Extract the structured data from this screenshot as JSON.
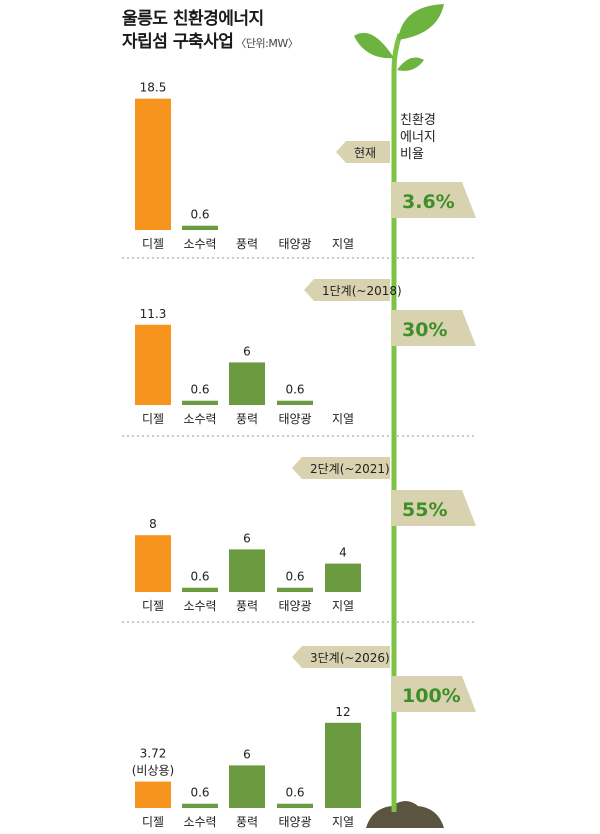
{
  "title_line1": "울릉도 친환경에너지",
  "title_line2": "자립섬 구축사업",
  "unit": "〈단위:MW〉",
  "ratio_label": "친환경\n에너지\n비율",
  "categories": [
    "디젤",
    "소수력",
    "풍력",
    "태양광",
    "지열"
  ],
  "colors": {
    "diesel": "#f7941d",
    "renewable": "#6b9a40",
    "banner": "#d9d2b0",
    "stem": "#7dc243"
  },
  "chart_data": [
    {
      "type": "bar",
      "stage": "현재",
      "ratio": "3.6%",
      "categories": [
        "디젤",
        "소수력",
        "풍력",
        "태양광",
        "지열"
      ],
      "values": [
        18.5,
        0.6,
        null,
        null,
        null
      ],
      "value_labels": [
        "18.5",
        "0.6",
        "",
        "",
        ""
      ]
    },
    {
      "type": "bar",
      "stage": "1단계(~2018)",
      "ratio": "30%",
      "categories": [
        "디젤",
        "소수력",
        "풍력",
        "태양광",
        "지열"
      ],
      "values": [
        11.3,
        0.6,
        6,
        0.6,
        null
      ],
      "value_labels": [
        "11.3",
        "0.6",
        "6",
        "0.6",
        ""
      ]
    },
    {
      "type": "bar",
      "stage": "2단계(~2021)",
      "ratio": "55%",
      "categories": [
        "디젤",
        "소수력",
        "풍력",
        "태양광",
        "지열"
      ],
      "values": [
        8,
        0.6,
        6,
        0.6,
        4
      ],
      "value_labels": [
        "8",
        "0.6",
        "6",
        "0.6",
        "4"
      ]
    },
    {
      "type": "bar",
      "stage": "3단계(~2026)",
      "ratio": "100%",
      "categories": [
        "디젤",
        "소수력",
        "풍력",
        "태양광",
        "지열"
      ],
      "values": [
        3.72,
        0.6,
        6,
        0.6,
        12
      ],
      "value_labels": [
        "3.72",
        "0.6",
        "6",
        "0.6",
        "12"
      ],
      "diesel_note": "(비상용)"
    }
  ]
}
